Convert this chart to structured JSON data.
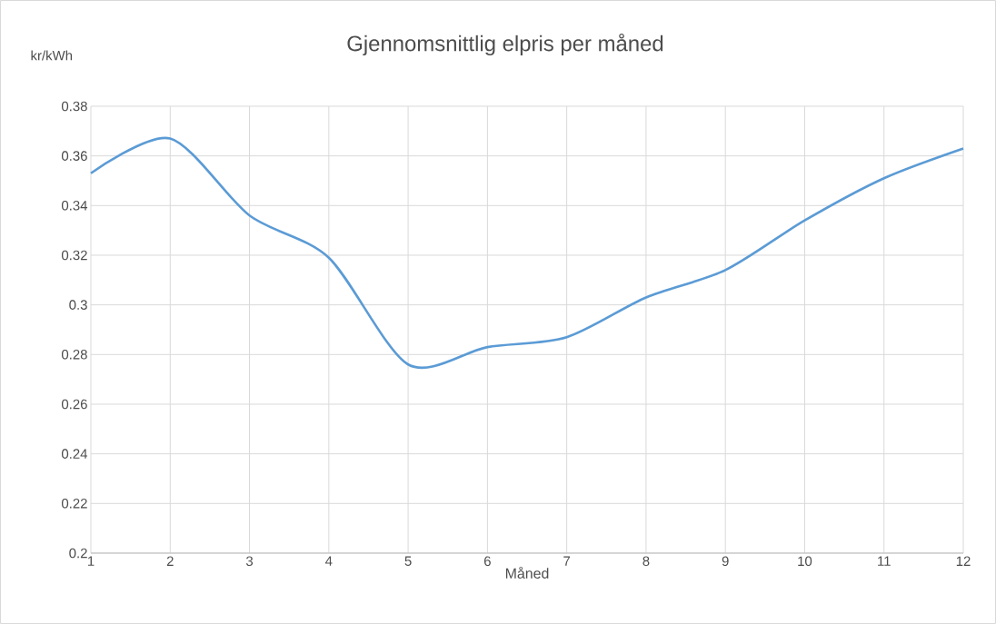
{
  "chart_data": {
    "type": "line",
    "title": "Gjennomsnittlig elpris per måned",
    "xlabel": "Måned",
    "ylabel": "kr/kWh",
    "x": [
      1,
      2,
      3,
      4,
      5,
      6,
      7,
      8,
      9,
      10,
      11,
      12
    ],
    "series": [
      {
        "color": "#5b9bd5",
        "values": [
          0.353,
          0.367,
          0.336,
          0.319,
          0.276,
          0.283,
          0.287,
          0.303,
          0.314,
          0.334,
          0.351,
          0.363
        ]
      }
    ],
    "xlim": [
      1,
      12
    ],
    "xticks": [
      1,
      2,
      3,
      4,
      5,
      6,
      7,
      8,
      9,
      10,
      11,
      12
    ],
    "ylim": [
      0.2,
      0.38
    ],
    "yticks": [
      0.2,
      0.22,
      0.24,
      0.26,
      0.28,
      0.3,
      0.32,
      0.34,
      0.36,
      0.38
    ],
    "grid": true,
    "marker": "none",
    "line_style": "solid"
  }
}
